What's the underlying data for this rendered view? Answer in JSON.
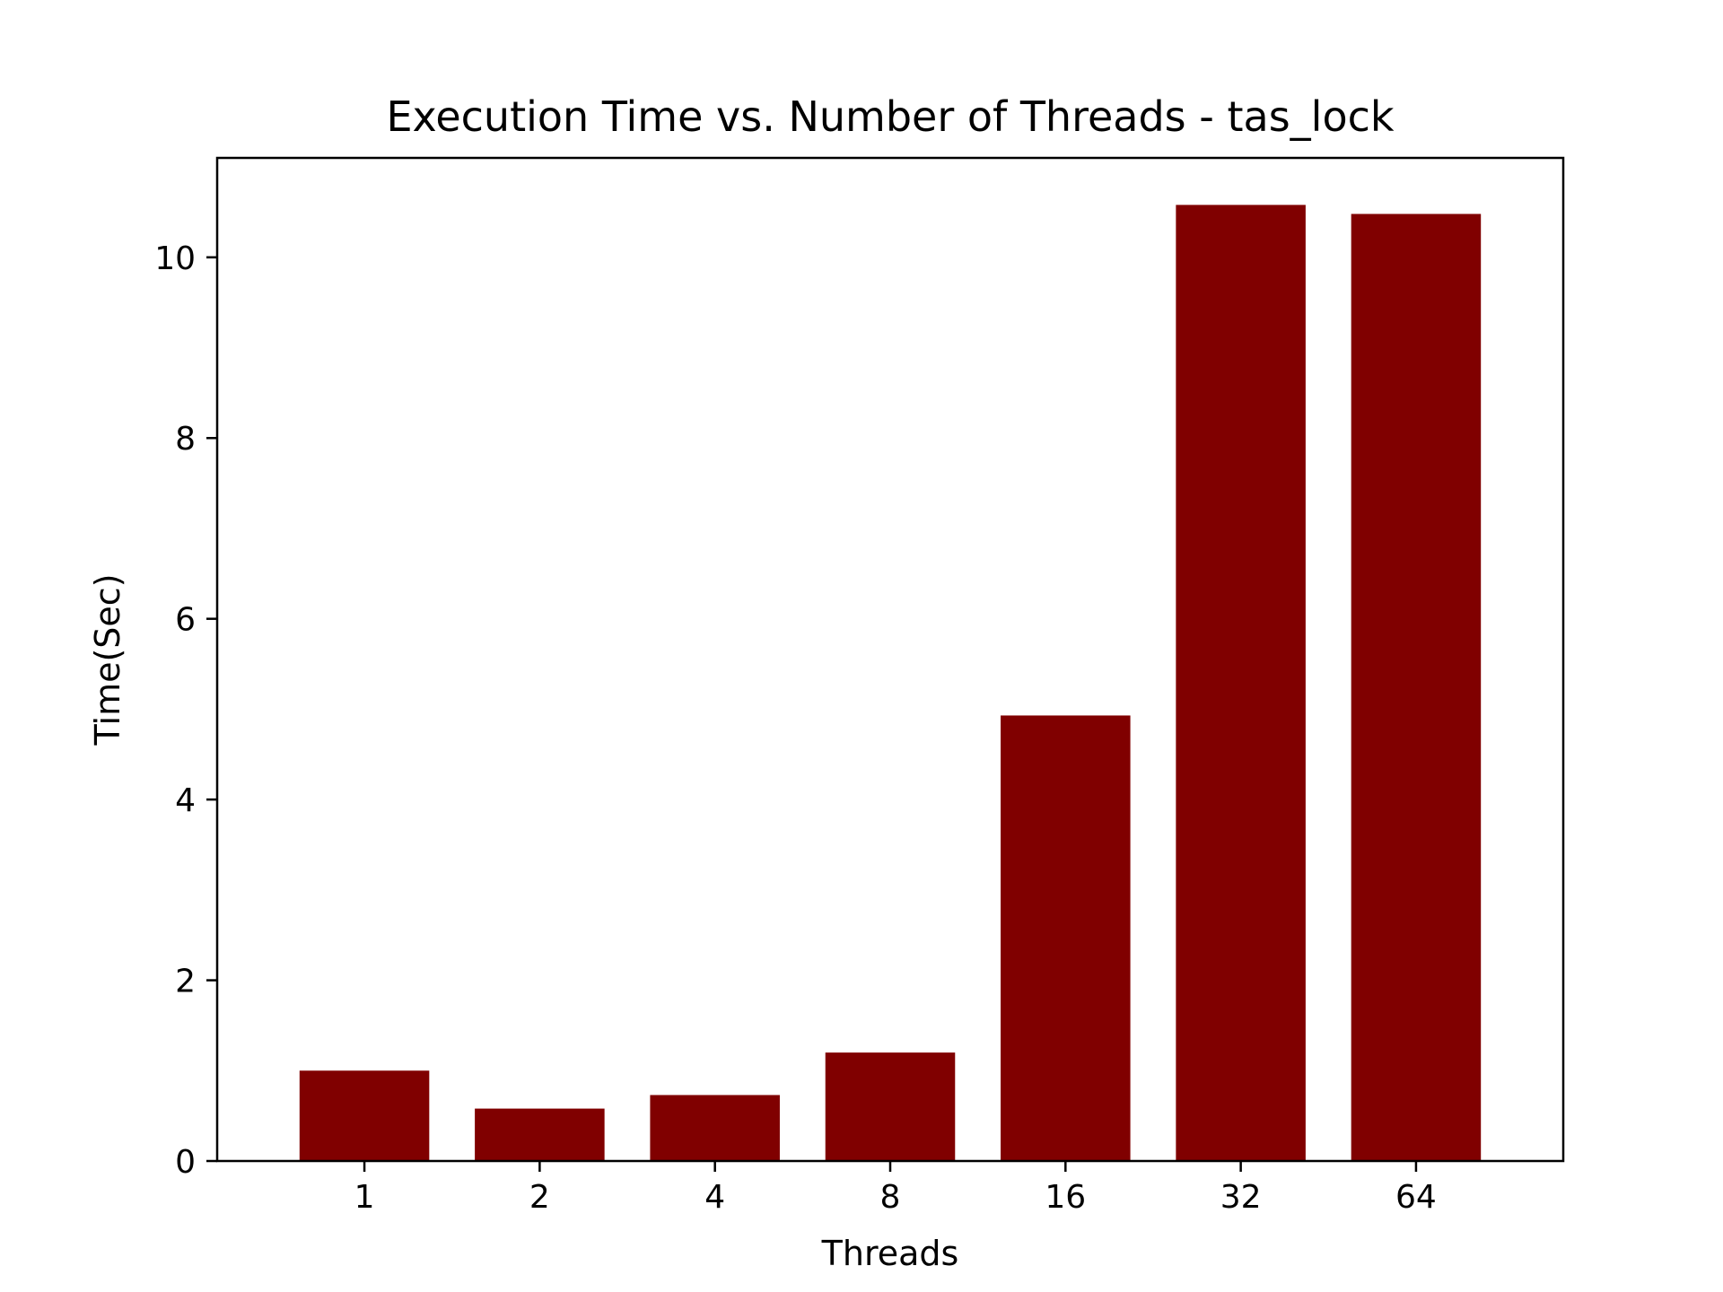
{
  "chart_data": {
    "type": "bar",
    "title": "Execution Time vs. Number of Threads - tas_lock",
    "xlabel": "Threads",
    "ylabel": "Time(Sec)",
    "categories": [
      "1",
      "2",
      "4",
      "8",
      "16",
      "32",
      "64"
    ],
    "values": [
      1.0,
      0.58,
      0.73,
      1.2,
      4.93,
      10.58,
      10.48
    ],
    "ylim": [
      0,
      11.1
    ],
    "yticks": [
      0,
      2,
      4,
      6,
      8,
      10
    ],
    "bar_color": "#800000",
    "grid": false,
    "legend": "none"
  }
}
